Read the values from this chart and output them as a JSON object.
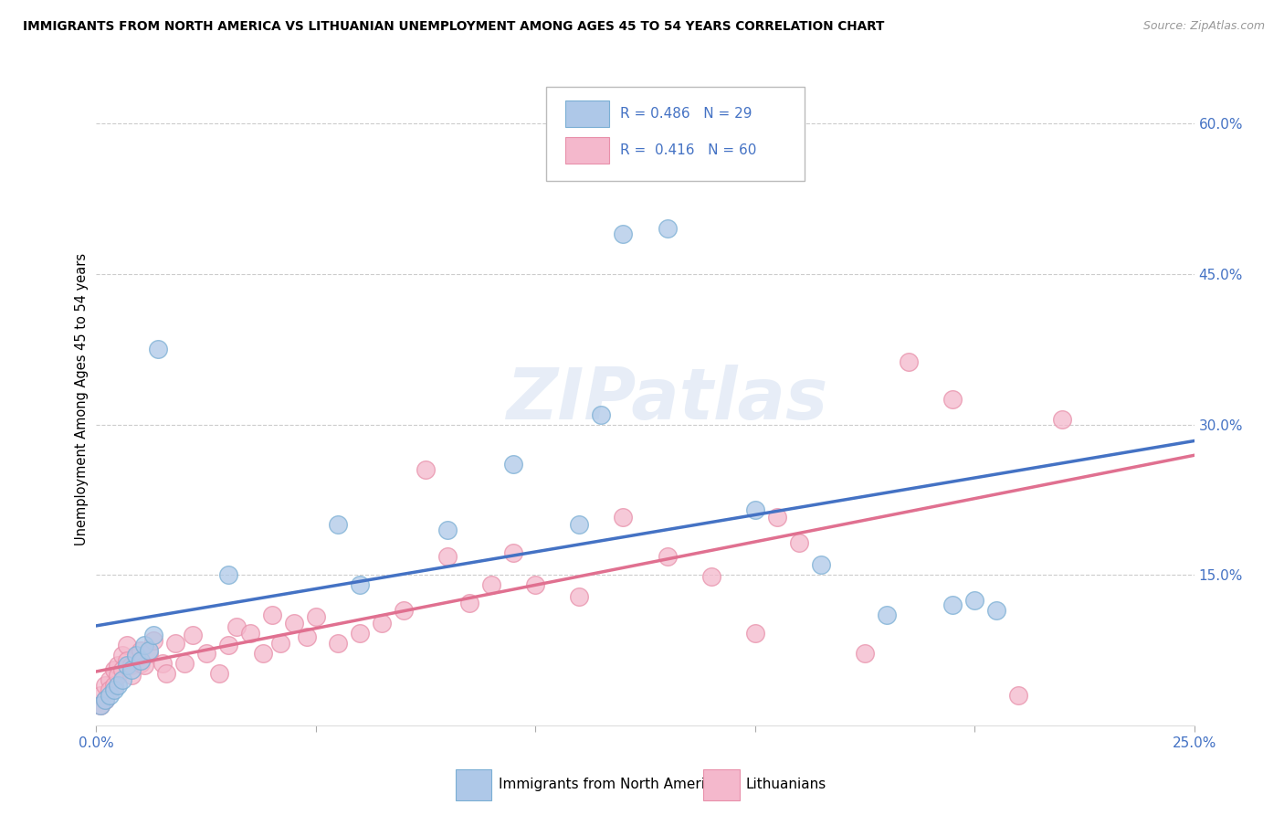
{
  "title": "IMMIGRANTS FROM NORTH AMERICA VS LITHUANIAN UNEMPLOYMENT AMONG AGES 45 TO 54 YEARS CORRELATION CHART",
  "source": "Source: ZipAtlas.com",
  "ylabel": "Unemployment Among Ages 45 to 54 years",
  "xlim": [
    0.0,
    0.25
  ],
  "ylim": [
    0.0,
    0.65
  ],
  "xtick_positions": [
    0.0,
    0.05,
    0.1,
    0.15,
    0.2,
    0.25
  ],
  "xtick_labels": [
    "0.0%",
    "",
    "",
    "",
    "",
    "25.0%"
  ],
  "yticks_right": [
    0.15,
    0.3,
    0.45,
    0.6
  ],
  "ytick_right_labels": [
    "15.0%",
    "30.0%",
    "45.0%",
    "60.0%"
  ],
  "blue_R": "0.486",
  "blue_N": "29",
  "pink_R": "0.416",
  "pink_N": "60",
  "legend_label_blue": "Immigrants from North America",
  "legend_label_pink": "Lithuanians",
  "blue_fill": "#aec8e8",
  "pink_fill": "#f4b8cc",
  "blue_edge": "#7bafd4",
  "pink_edge": "#e890aa",
  "blue_line": "#4472c4",
  "pink_line": "#e07090",
  "watermark": "ZIPatlas",
  "blue_x": [
    0.001,
    0.002,
    0.003,
    0.004,
    0.005,
    0.006,
    0.007,
    0.008,
    0.009,
    0.01,
    0.011,
    0.012,
    0.013,
    0.014,
    0.03,
    0.055,
    0.06,
    0.08,
    0.095,
    0.11,
    0.115,
    0.12,
    0.13,
    0.15,
    0.165,
    0.18,
    0.195,
    0.2,
    0.205
  ],
  "blue_y": [
    0.02,
    0.025,
    0.03,
    0.035,
    0.04,
    0.045,
    0.06,
    0.055,
    0.07,
    0.065,
    0.08,
    0.075,
    0.09,
    0.375,
    0.15,
    0.2,
    0.14,
    0.195,
    0.26,
    0.2,
    0.31,
    0.49,
    0.495,
    0.215,
    0.16,
    0.11,
    0.12,
    0.125,
    0.115
  ],
  "pink_x": [
    0.001,
    0.001,
    0.002,
    0.002,
    0.003,
    0.003,
    0.004,
    0.004,
    0.005,
    0.005,
    0.006,
    0.006,
    0.007,
    0.007,
    0.008,
    0.008,
    0.009,
    0.01,
    0.01,
    0.011,
    0.012,
    0.013,
    0.015,
    0.016,
    0.018,
    0.02,
    0.022,
    0.025,
    0.028,
    0.03,
    0.032,
    0.035,
    0.038,
    0.04,
    0.042,
    0.045,
    0.048,
    0.05,
    0.055,
    0.06,
    0.065,
    0.07,
    0.075,
    0.08,
    0.085,
    0.09,
    0.095,
    0.1,
    0.11,
    0.12,
    0.13,
    0.14,
    0.15,
    0.155,
    0.16,
    0.175,
    0.185,
    0.195,
    0.21,
    0.22
  ],
  "pink_y": [
    0.03,
    0.02,
    0.04,
    0.025,
    0.045,
    0.035,
    0.055,
    0.04,
    0.06,
    0.05,
    0.07,
    0.055,
    0.08,
    0.065,
    0.06,
    0.05,
    0.068,
    0.075,
    0.062,
    0.06,
    0.072,
    0.085,
    0.062,
    0.052,
    0.082,
    0.062,
    0.09,
    0.072,
    0.052,
    0.08,
    0.098,
    0.092,
    0.072,
    0.11,
    0.082,
    0.102,
    0.088,
    0.108,
    0.082,
    0.092,
    0.102,
    0.115,
    0.255,
    0.168,
    0.122,
    0.14,
    0.172,
    0.14,
    0.128,
    0.208,
    0.168,
    0.148,
    0.092,
    0.208,
    0.182,
    0.072,
    0.362,
    0.325,
    0.03,
    0.305
  ]
}
